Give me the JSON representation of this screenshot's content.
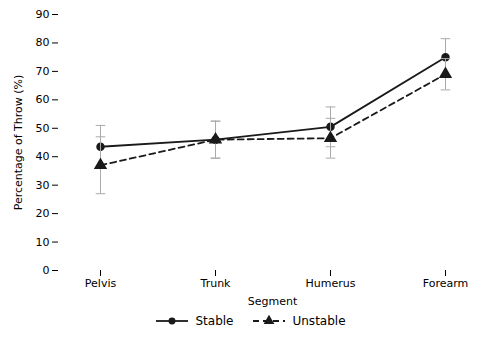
{
  "chart_data": {
    "type": "line",
    "xlabel": "Segment",
    "ylabel": "Percentage of Throw (%)",
    "categories": [
      "Pelvis",
      "Trunk",
      "Humerus",
      "Forearm"
    ],
    "series": [
      {
        "name": "Stable",
        "color": "#1a1a1a",
        "values": [
          43.5,
          46.0,
          50.5,
          75.0
        ],
        "errors": [
          7.5,
          6.5,
          7.0,
          6.5
        ],
        "marker": "circle",
        "line_style": "solid"
      },
      {
        "name": "Unstable",
        "color": "#1a1a1a",
        "values": [
          37.0,
          46.0,
          46.5,
          69.0
        ],
        "errors": [
          10.0,
          6.5,
          7.0,
          5.5
        ],
        "marker": "triangle",
        "line_style": "dashed"
      }
    ],
    "ylim": [
      0,
      90
    ],
    "yticks": [
      0,
      10,
      20,
      30,
      40,
      50,
      60,
      70,
      80,
      90
    ],
    "grid": false,
    "legend": "bottom"
  }
}
